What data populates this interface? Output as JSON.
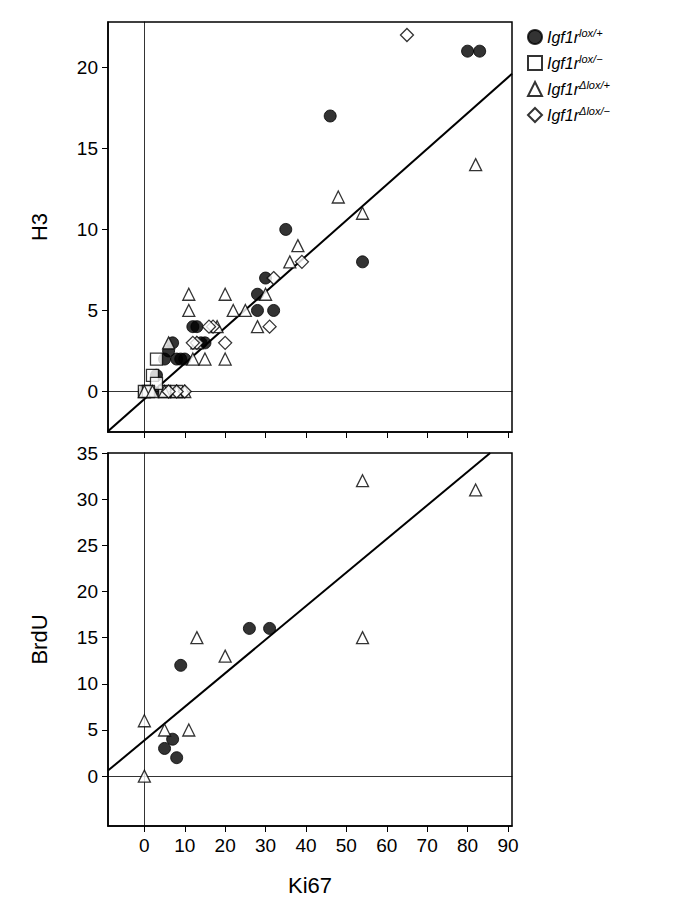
{
  "chart_data": [
    {
      "type": "scatter",
      "y_label": "H3",
      "xlim": [
        -9,
        91
      ],
      "xticks": [
        0,
        10,
        20,
        30,
        40,
        50,
        60,
        70,
        80,
        90
      ],
      "ylim": [
        -2.5,
        22.8
      ],
      "yticks": [
        0,
        5,
        10,
        15,
        20
      ],
      "tick_labels": "y",
      "grid": false,
      "legend": "right",
      "series": [
        {
          "name": "Igf1rlox/+",
          "color": "#000000",
          "marker": "circle",
          "values": [
            [
              80,
              21
            ],
            [
              83,
              21
            ],
            [
              46,
              17
            ],
            [
              35,
              10
            ],
            [
              28,
              6
            ],
            [
              30,
              7
            ],
            [
              28,
              5
            ],
            [
              32,
              5
            ],
            [
              54,
              8
            ],
            [
              12,
              4
            ],
            [
              15,
              3
            ],
            [
              13,
              4
            ],
            [
              9,
              2
            ],
            [
              7,
              3
            ],
            [
              5,
              2
            ],
            [
              8,
              2
            ],
            [
              10,
              2
            ],
            [
              2,
              0
            ],
            [
              3,
              1
            ],
            [
              5,
              0
            ],
            [
              0,
              0
            ],
            [
              14,
              3
            ],
            [
              6,
              2.5
            ]
          ]
        },
        {
          "name": "Igf1rlox/−",
          "color": "#000000",
          "marker": "open_square",
          "values": [
            [
              2,
              1
            ],
            [
              3,
              2
            ],
            [
              0,
              0
            ],
            [
              5,
              0
            ],
            [
              8,
              0
            ],
            [
              3,
              0.5
            ],
            [
              1,
              0
            ]
          ]
        },
        {
          "name": "Igf1rΔlox/+",
          "color": "#000000",
          "marker": "open_triangle",
          "values": [
            [
              82,
              14
            ],
            [
              48,
              12
            ],
            [
              54,
              11
            ],
            [
              38,
              9
            ],
            [
              36,
              8
            ],
            [
              28,
              4
            ],
            [
              30,
              6
            ],
            [
              20,
              6
            ],
            [
              11,
              6
            ],
            [
              11,
              5
            ],
            [
              22,
              5
            ],
            [
              15,
              2
            ],
            [
              18,
              4
            ],
            [
              20,
              2
            ],
            [
              12,
              2
            ],
            [
              13,
              3
            ],
            [
              6,
              3
            ],
            [
              0,
              0
            ],
            [
              5,
              0
            ],
            [
              10,
              0
            ],
            [
              2,
              0
            ],
            [
              8,
              0
            ],
            [
              25,
              5
            ]
          ]
        },
        {
          "name": "Igf1rΔlox/−",
          "color": "#000000",
          "marker": "open_diamond",
          "values": [
            [
              65,
              22
            ],
            [
              39,
              8
            ],
            [
              31,
              4
            ],
            [
              32,
              7
            ],
            [
              17,
              4
            ],
            [
              20,
              3
            ],
            [
              13,
              3
            ],
            [
              16,
              4
            ],
            [
              10,
              0
            ],
            [
              8,
              0
            ],
            [
              12,
              3
            ],
            [
              6,
              0
            ]
          ]
        },
        {
          "type": "line",
          "color": "#000000",
          "line_style": "solid",
          "values": [
            [
              -9.2,
              -2.5
            ],
            [
              91,
              19.6
            ]
          ]
        }
      ]
    },
    {
      "type": "scatter",
      "x_label": "Ki67",
      "y_label": "BrdU",
      "xlim": [
        -9,
        91
      ],
      "xticks": [
        0,
        10,
        20,
        30,
        40,
        50,
        60,
        70,
        80,
        90
      ],
      "ylim": [
        -5.4,
        35
      ],
      "yticks": [
        0,
        5,
        10,
        15,
        20,
        25,
        30,
        35
      ],
      "grid": false,
      "series": [
        {
          "name": "Igf1rlox/+",
          "color": "#000000",
          "marker": "circle",
          "values": [
            [
              9,
              12
            ],
            [
              26,
              16
            ],
            [
              31,
              16
            ],
            [
              5,
              3
            ],
            [
              7,
              4
            ],
            [
              8,
              2
            ]
          ]
        },
        {
          "name": "Igf1rΔlox/+",
          "color": "#000000",
          "marker": "open_triangle",
          "values": [
            [
              0,
              6
            ],
            [
              0,
              0
            ],
            [
              5,
              5
            ],
            [
              11,
              5
            ],
            [
              13,
              15
            ],
            [
              20,
              13
            ],
            [
              54,
              32
            ],
            [
              82,
              31
            ],
            [
              54,
              15
            ]
          ]
        },
        {
          "type": "line",
          "color": "#000000",
          "line_style": "solid",
          "values": [
            [
              -9,
              0.6
            ],
            [
              85.6,
              35
            ]
          ]
        }
      ]
    }
  ]
}
